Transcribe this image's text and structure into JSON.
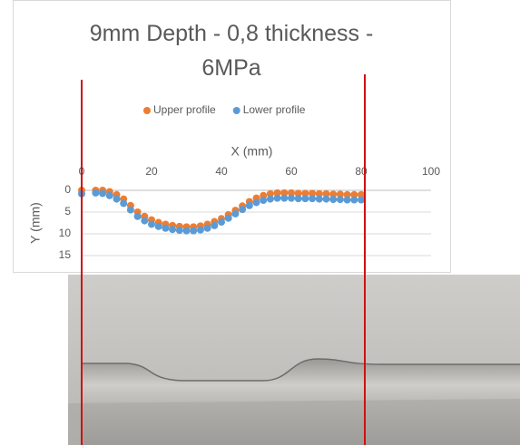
{
  "chart_data": {
    "type": "scatter",
    "title": "9mm Depth - 0,8 thickness - 6MPa",
    "x_label": "X (mm)",
    "y_label": "Y (mm)",
    "x": [
      0,
      4,
      6,
      8,
      10,
      12,
      14,
      16,
      18,
      20,
      22,
      24,
      26,
      28,
      30,
      32,
      34,
      36,
      38,
      40,
      42,
      44,
      46,
      48,
      50,
      52,
      54,
      56,
      58,
      60,
      62,
      64,
      66,
      68,
      70,
      72,
      74,
      76,
      78,
      80
    ],
    "series": [
      {
        "name": "Upper profile",
        "color": "#ED7D31",
        "values": [
          0,
          0,
          0,
          0.3,
          1,
          2,
          3.5,
          5,
          6,
          6.8,
          7.4,
          7.8,
          8.1,
          8.3,
          8.4,
          8.4,
          8.2,
          7.8,
          7.2,
          6.5,
          5.6,
          4.6,
          3.6,
          2.6,
          1.8,
          1.2,
          0.8,
          0.6,
          0.6,
          0.6,
          0.7,
          0.7,
          0.7,
          0.8,
          0.8,
          0.9,
          0.9,
          1,
          1,
          1
        ]
      },
      {
        "name": "Lower profile",
        "color": "#5B9BD5",
        "values": [
          0.8,
          0.6,
          0.7,
          1.2,
          2,
          3,
          4.5,
          6,
          7,
          7.8,
          8.3,
          8.7,
          9,
          9.2,
          9.3,
          9.3,
          9.1,
          8.7,
          8.1,
          7.3,
          6.4,
          5.4,
          4.4,
          3.5,
          2.8,
          2.3,
          2,
          1.8,
          1.8,
          1.8,
          1.9,
          1.9,
          1.9,
          2,
          2,
          2.1,
          2.1,
          2.2,
          2.2,
          2.2
        ]
      }
    ],
    "xlim": [
      0,
      100
    ],
    "xticks": [
      0,
      20,
      40,
      60,
      80,
      100
    ],
    "ylim": [
      0,
      15
    ],
    "yticks": [
      0,
      5,
      10,
      15
    ],
    "y_reversed": true,
    "x_axis_position": "top",
    "grid": true,
    "legend": "top"
  }
}
